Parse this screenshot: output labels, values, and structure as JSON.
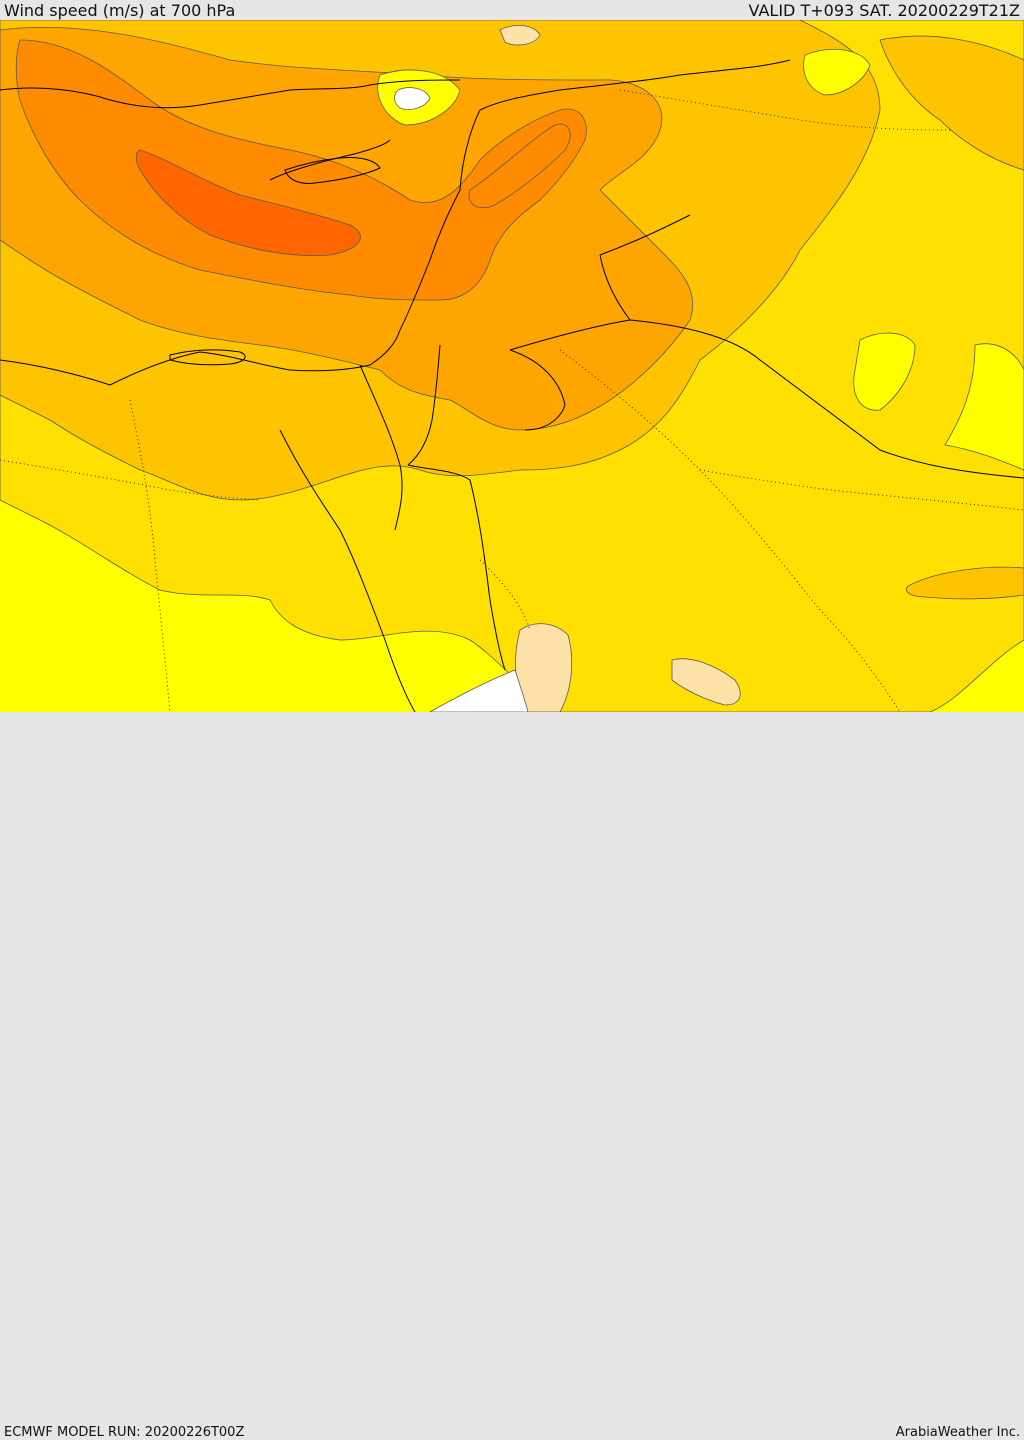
{
  "header": {
    "title": "Wind speed (m/s) at 700 hPa",
    "valid": "VALID T+093 SAT. 20200229T21Z"
  },
  "footer": {
    "model_run": "ECMWF MODEL RUN: 20200226T00Z",
    "credit": "ArabiaWeather Inc."
  },
  "palette": {
    "band_1": "#ffff00",
    "band_2": "#ffe000",
    "band_3": "#ffc400",
    "band_4": "#ffa500",
    "band_5": "#ff8c00",
    "band_6": "#ff6600",
    "calm_light": "#fde2a8",
    "calm_white": "#ffffff"
  }
}
